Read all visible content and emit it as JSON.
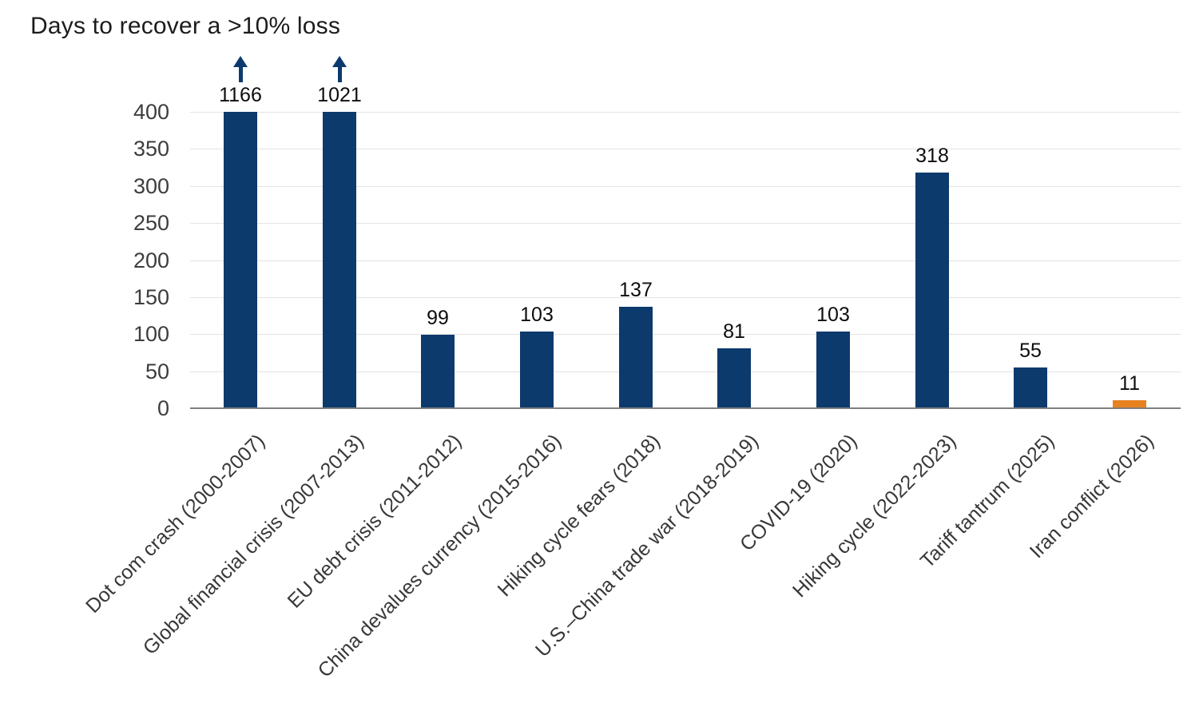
{
  "title": "Days to recover a >10% loss",
  "chart_data": {
    "type": "bar",
    "title": "Days to recover a >10% loss",
    "xlabel": "",
    "ylabel": "",
    "categories": [
      "Dot com crash (2000-2007)",
      "Global financial crisis (2007-2013)",
      "EU debt crisis (2011-2012)",
      "China devalues currency (2015-2016)",
      "Hiking cycle fears (2018)",
      "U.S.–China trade war (2018-2019)",
      "COVID-19 (2020)",
      "Hiking cycle (2022-2023)",
      "Tariff tantrum (2025)",
      "Iran conflict (2026)"
    ],
    "values": [
      1166,
      1021,
      99,
      103,
      137,
      81,
      103,
      318,
      55,
      11
    ],
    "data_labels": [
      "1166",
      "1021",
      "99",
      "103",
      "137",
      "81",
      "103",
      "318",
      "55",
      "11"
    ],
    "truncated": [
      true,
      true,
      false,
      false,
      false,
      false,
      false,
      false,
      false,
      false
    ],
    "ylim": [
      0,
      400
    ],
    "yticks": [
      0,
      50,
      100,
      150,
      200,
      250,
      300,
      350,
      400
    ],
    "grid": "horizontal",
    "legend": "none",
    "bar_colors": [
      "#0d3a6d",
      "#0d3a6d",
      "#0d3a6d",
      "#0d3a6d",
      "#0d3a6d",
      "#0d3a6d",
      "#0d3a6d",
      "#0d3a6d",
      "#0d3a6d",
      "#e8811f"
    ],
    "colors": {
      "bar_navy": "#0d3a6d",
      "bar_orange": "#e8811f",
      "arrow": "#0d3a6d",
      "gridline": "#e3e3e3",
      "axis_line": "#7f7f7f",
      "title_text": "#1c1c1c",
      "tick_text": "#3d3d3d",
      "label_text": "#0d0d0d"
    }
  }
}
